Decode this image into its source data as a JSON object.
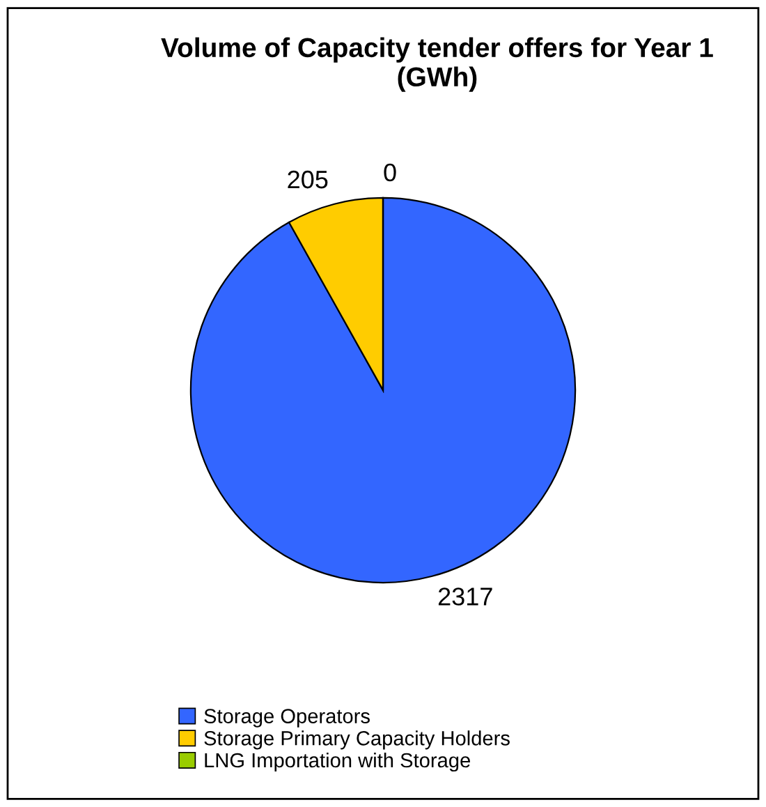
{
  "chart_data": {
    "type": "pie",
    "title": "Volume of Capacity tender offers for Year 1 (GWh)",
    "categories": [
      "Storage Operators",
      "Storage Primary Capacity Holders",
      "LNG Importation with Storage"
    ],
    "values": [
      2317,
      205,
      0
    ],
    "colors": [
      "#3366ff",
      "#ffcc00",
      "#99cc00"
    ],
    "value_labels": [
      "2317",
      "205",
      "0"
    ],
    "legend": "bottom"
  }
}
